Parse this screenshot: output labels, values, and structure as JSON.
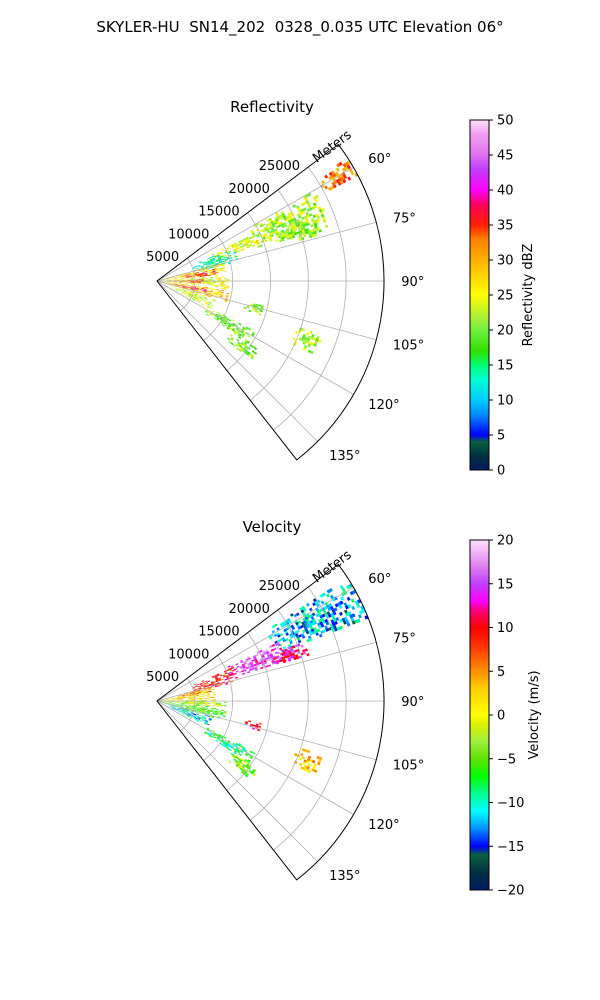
{
  "figure": {
    "title": "SKYLER-HU  SN14_202  0328_0.035 UTC Elevation 06°"
  },
  "chart_data": [
    {
      "type": "polar-sector",
      "title": "Reflectivity",
      "range_axis_label": "Meters",
      "range_ticks": [
        5000,
        10000,
        15000,
        20000,
        25000
      ],
      "range_tick_labels": [
        "5000",
        "10000",
        "15000",
        "20000",
        "25000"
      ],
      "range_limit": [
        0,
        30000
      ],
      "theta_ticks": [
        60,
        75,
        90,
        105,
        120,
        135
      ],
      "theta_tick_labels": [
        "60°",
        "75°",
        "90°",
        "105°",
        "120°",
        "135°"
      ],
      "theta_limit": [
        53,
        142
      ],
      "colorbar": {
        "label": "Reflectivity dBZ",
        "range": [
          0,
          50
        ],
        "ticks": [
          0,
          5,
          10,
          15,
          20,
          25,
          30,
          35,
          40,
          45,
          50
        ],
        "tick_labels": [
          "0",
          "5",
          "10",
          "15",
          "20",
          "25",
          "30",
          "35",
          "40",
          "45",
          "50"
        ]
      },
      "echo_regions": [
        {
          "az": [
            57,
            62
          ],
          "range": [
            25000,
            29800
          ],
          "value": 33
        },
        {
          "az": [
            60,
            72
          ],
          "range": [
            14000,
            24000
          ],
          "value": 22
        },
        {
          "az": [
            64,
            70
          ],
          "range": [
            8000,
            16000
          ],
          "value": 24
        },
        {
          "az": [
            68,
            74
          ],
          "range": [
            17000,
            23000
          ],
          "value": 21
        },
        {
          "az": [
            66,
            76
          ],
          "range": [
            5000,
            11000
          ],
          "value": 14
        },
        {
          "az": [
            74,
            84
          ],
          "range": [
            200,
            9000
          ],
          "value": 26
        },
        {
          "az": [
            78,
            84
          ],
          "range": [
            3500,
            8000
          ],
          "value": 35
        },
        {
          "az": [
            85,
            95
          ],
          "range": [
            200,
            9500
          ],
          "value": 24
        },
        {
          "az": [
            88,
            93
          ],
          "range": [
            1500,
            6500
          ],
          "value": 33
        },
        {
          "az": [
            96,
            106
          ],
          "range": [
            300,
            9500
          ],
          "value": 28
        },
        {
          "az": [
            99,
            103
          ],
          "range": [
            2000,
            6500
          ],
          "value": 37
        },
        {
          "az": [
            107,
            117
          ],
          "range": [
            2000,
            8000
          ],
          "value": 24
        },
        {
          "az": [
            103,
            108
          ],
          "range": [
            12000,
            14500
          ],
          "value": 21
        },
        {
          "az": [
            117,
            124
          ],
          "range": [
            7500,
            14500
          ],
          "value": 20
        },
        {
          "az": [
            124,
            130
          ],
          "range": [
            12000,
            16000
          ],
          "value": 21
        },
        {
          "az": [
            108,
            115
          ],
          "range": [
            19500,
            23000
          ],
          "value": 22
        }
      ]
    },
    {
      "type": "polar-sector",
      "title": "Velocity",
      "range_axis_label": "Meters",
      "range_ticks": [
        5000,
        10000,
        15000,
        20000,
        25000
      ],
      "range_tick_labels": [
        "5000",
        "10000",
        "15000",
        "20000",
        "25000"
      ],
      "range_limit": [
        0,
        30000
      ],
      "theta_ticks": [
        60,
        75,
        90,
        105,
        120,
        135
      ],
      "theta_tick_labels": [
        "60°",
        "75°",
        "90°",
        "105°",
        "120°",
        "135°"
      ],
      "theta_limit": [
        53,
        142
      ],
      "colorbar": {
        "label": "Velocity (m/s)",
        "range": [
          -20,
          20
        ],
        "ticks": [
          -20,
          -15,
          -10,
          -5,
          0,
          5,
          10,
          15,
          20
        ],
        "tick_labels": [
          "−20",
          "−15",
          "−10",
          "−5",
          "0",
          "5",
          "10",
          "15",
          "20"
        ]
      },
      "echo_regions": [
        {
          "az": [
            57,
            68
          ],
          "range": [
            17000,
            29800
          ],
          "value": -12
        },
        {
          "az": [
            64,
            73
          ],
          "range": [
            10000,
            19000
          ],
          "value": 15
        },
        {
          "az": [
            66,
            76
          ],
          "range": [
            5000,
            11000
          ],
          "value": 9
        },
        {
          "az": [
            68,
            73
          ],
          "range": [
            16000,
            21000
          ],
          "value": 13
        },
        {
          "az": [
            74,
            80
          ],
          "range": [
            3000,
            7500
          ],
          "value": 7
        },
        {
          "az": [
            77,
            88
          ],
          "range": [
            200,
            7500
          ],
          "value": 2
        },
        {
          "az": [
            88,
            96
          ],
          "range": [
            200,
            9000
          ],
          "value": -2
        },
        {
          "az": [
            96,
            106
          ],
          "range": [
            300,
            9000
          ],
          "value": -5
        },
        {
          "az": [
            106,
            116
          ],
          "range": [
            1500,
            7500
          ],
          "value": -11
        },
        {
          "az": [
            101,
            106
          ],
          "range": [
            12000,
            14000
          ],
          "value": 10
        },
        {
          "az": [
            117,
            124
          ],
          "range": [
            7500,
            14500
          ],
          "value": -8
        },
        {
          "az": [
            124,
            130
          ],
          "range": [
            12000,
            16000
          ],
          "value": -4
        },
        {
          "az": [
            108,
            115
          ],
          "range": [
            19500,
            23000
          ],
          "value": 3
        }
      ]
    }
  ],
  "colors": {
    "grid": "#b0b0b0",
    "refl_stops": [
      [
        0,
        "#001a60"
      ],
      [
        2,
        "#003040"
      ],
      [
        4,
        "#0a6040"
      ],
      [
        5,
        "#0000ff"
      ],
      [
        8,
        "#0090ff"
      ],
      [
        10,
        "#00ccff"
      ],
      [
        13,
        "#00ffd0"
      ],
      [
        15,
        "#00ff70"
      ],
      [
        17,
        "#30e000"
      ],
      [
        20,
        "#70f040"
      ],
      [
        22,
        "#b0f030"
      ],
      [
        25,
        "#ffff00"
      ],
      [
        28,
        "#ffd000"
      ],
      [
        30,
        "#ffb000"
      ],
      [
        33,
        "#ff8000"
      ],
      [
        35,
        "#ff2000"
      ],
      [
        38,
        "#ff0060"
      ],
      [
        40,
        "#ff00ff"
      ],
      [
        43,
        "#c040ff"
      ],
      [
        45,
        "#e070f0"
      ],
      [
        48,
        "#f0a0f0"
      ],
      [
        50,
        "#ffe0ff"
      ]
    ],
    "vel_stops": [
      [
        -20,
        "#001a60"
      ],
      [
        -18,
        "#003040"
      ],
      [
        -16,
        "#0a6040"
      ],
      [
        -15,
        "#0000ff"
      ],
      [
        -13,
        "#0090ff"
      ],
      [
        -11,
        "#00ffff"
      ],
      [
        -9,
        "#00ff90"
      ],
      [
        -7,
        "#00ff00"
      ],
      [
        -5,
        "#60e000"
      ],
      [
        -3,
        "#a0f040"
      ],
      [
        -1,
        "#e0f000"
      ],
      [
        0,
        "#ffff00"
      ],
      [
        3,
        "#ffd000"
      ],
      [
        5,
        "#ff9000"
      ],
      [
        8,
        "#ff3000"
      ],
      [
        10,
        "#ff0000"
      ],
      [
        12,
        "#ff0080"
      ],
      [
        13,
        "#ff00ff"
      ],
      [
        15,
        "#c040ff"
      ],
      [
        17,
        "#e080f0"
      ],
      [
        20,
        "#ffe0ff"
      ]
    ]
  }
}
